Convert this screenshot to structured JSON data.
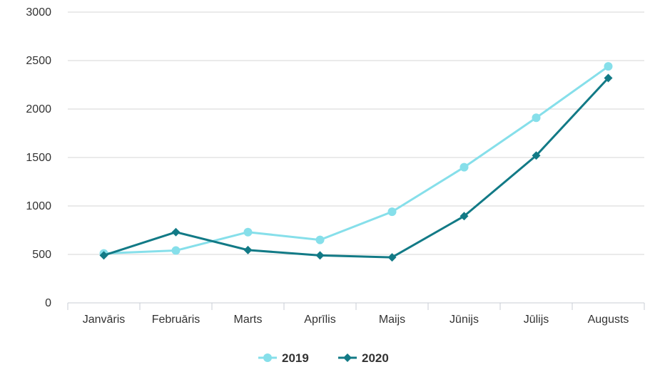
{
  "chart_data": {
    "type": "line",
    "title": "",
    "xlabel": "",
    "ylabel": "",
    "categories": [
      "Janvāris",
      "Februāris",
      "Marts",
      "Aprīlis",
      "Maijs",
      "Jūnijs",
      "Jūlijs",
      "Augusts"
    ],
    "ylim": [
      0,
      3000
    ],
    "yticks": [
      0,
      500,
      1000,
      1500,
      2000,
      2500,
      3000
    ],
    "grid": true,
    "legend_position": "bottom-center",
    "series": [
      {
        "name": "2019",
        "values": [
          510,
          540,
          730,
          650,
          940,
          1400,
          1910,
          2440
        ],
        "color": "#86dfea",
        "marker": "circle"
      },
      {
        "name": "2020",
        "values": [
          490,
          730,
          545,
          490,
          470,
          895,
          1520,
          2320
        ],
        "color": "#127a86",
        "marker": "diamond"
      }
    ]
  }
}
